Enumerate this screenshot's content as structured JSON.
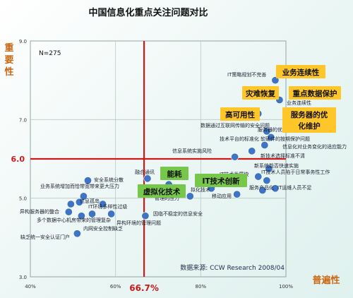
{
  "chart_data": {
    "type": "scatter",
    "title": "中国信息化重点关注问题对比",
    "title_suffix": "↵",
    "n_label": "N=275",
    "ylabel_chars": [
      "重",
      "要",
      "性"
    ],
    "xlabel": "普遍性",
    "source": "数据来源: CCW Research 2008/04",
    "xlim": [
      40,
      100
    ],
    "ylim": [
      3.0,
      9.0
    ],
    "x_ticks": [
      {
        "value": 40,
        "label": "40%"
      },
      {
        "value": 60,
        "label": "60%"
      },
      {
        "value": 80,
        "label": "80%"
      },
      {
        "value": 100,
        "label": "100%"
      }
    ],
    "y_ticks": [
      {
        "value": 3.0,
        "label": "3.0"
      },
      {
        "value": 5.0,
        "label": "5.0"
      },
      {
        "value": 7.0,
        "label": "7.0"
      },
      {
        "value": 9.0,
        "label": "9.0"
      }
    ],
    "ref_x": {
      "value": 66.7,
      "label": "66.7%"
    },
    "ref_y": {
      "value": 6.0,
      "label": "6.0"
    },
    "colors": {
      "point": "#3d74c4",
      "ref_line": "#cc1a1a",
      "axis_label": "#cc6611",
      "grid": "#b9c9c6",
      "highlight_bg": "#ffc629",
      "green_bg": "#77c84a",
      "ref_label": "#cc1a1a"
    },
    "points": [
      {
        "x": 97.5,
        "y": 8.0,
        "label": "IT策略规划不完善"
      },
      {
        "x": 98.5,
        "y": 7.5,
        "label": "业务连续性"
      },
      {
        "x": 93.5,
        "y": 7.15,
        "label": "数据通过互联网传输的安全问题"
      },
      {
        "x": 95.5,
        "y": 6.7,
        "label": "服务器的优化和维护"
      },
      {
        "x": 96.5,
        "y": 6.55,
        "label": "软硬件的按期保护问题"
      },
      {
        "x": 95.0,
        "y": 6.35,
        "label": "信息化对业务变化的适应能力"
      },
      {
        "x": 92.0,
        "y": 6.2,
        "label": "技术平台的标准化"
      },
      {
        "x": 88.0,
        "y": 6.05,
        "label": "信息系统实施风险"
      },
      {
        "x": 96.0,
        "y": 5.75,
        "label": "新技术选择标准不清"
      },
      {
        "x": 93.5,
        "y": 5.55,
        "label": "新系统能否快速实施"
      },
      {
        "x": 95.5,
        "y": 5.45,
        "label": "IT技术人员陷于日常事务性工作"
      },
      {
        "x": 97.5,
        "y": 5.25,
        "label": "IT运维人员不足"
      },
      {
        "x": 94.5,
        "y": 5.2,
        "label": "服务产品化"
      },
      {
        "x": 88.5,
        "y": 5.1,
        "label": "移动应用"
      },
      {
        "x": 82.5,
        "y": 5.25,
        "label": "IT技术发展快"
      },
      {
        "x": 77.5,
        "y": 5.05,
        "label": "拟化技术"
      },
      {
        "x": 72.5,
        "y": 5.35,
        "label": ""
      },
      {
        "x": 68.0,
        "y": 5.15,
        "label": "管理的压力"
      },
      {
        "x": 67.5,
        "y": 5.5,
        "label": "融合通讯"
      },
      {
        "x": 53.5,
        "y": 5.45,
        "label": "安全系统分散"
      },
      {
        "x": 52.5,
        "y": 5.05,
        "label": "业务系统增加而恰带宽带来更大压力"
      },
      {
        "x": 51.5,
        "y": 4.9,
        "label": "信息孤岛"
      },
      {
        "x": 49.5,
        "y": 4.85,
        "label": ""
      },
      {
        "x": 57.0,
        "y": 4.85,
        "label": "IT环境多样性过级"
      },
      {
        "x": 49.0,
        "y": 4.65,
        "label": "异构服务器的整合"
      },
      {
        "x": 52.0,
        "y": 4.55,
        "label": "多个数据中心机房带来的管理复杂"
      },
      {
        "x": 54.5,
        "y": 4.6,
        "label": "内网安全控制缺乏"
      },
      {
        "x": 59.0,
        "y": 4.6,
        "label": "异构环境的管理问题"
      },
      {
        "x": 67.0,
        "y": 4.55,
        "label": "因临不稳定的信息安全"
      },
      {
        "x": 51.0,
        "y": 4.1,
        "label": "缺乏统一安全认证门户"
      }
    ],
    "callouts": [
      {
        "text": "业务连续性",
        "style": "yellow"
      },
      {
        "text": "灾难恢复",
        "style": "yellow"
      },
      {
        "text": "重点数据保护",
        "style": "yellow"
      },
      {
        "text": "高可用性",
        "style": "yellow"
      },
      {
        "text": "服务器的优化维护",
        "style": "yellow"
      },
      {
        "text": "能耗",
        "style": "green"
      },
      {
        "text": "IT技术创新",
        "style": "green"
      },
      {
        "text": "虚拟化技术",
        "style": "green"
      }
    ]
  }
}
